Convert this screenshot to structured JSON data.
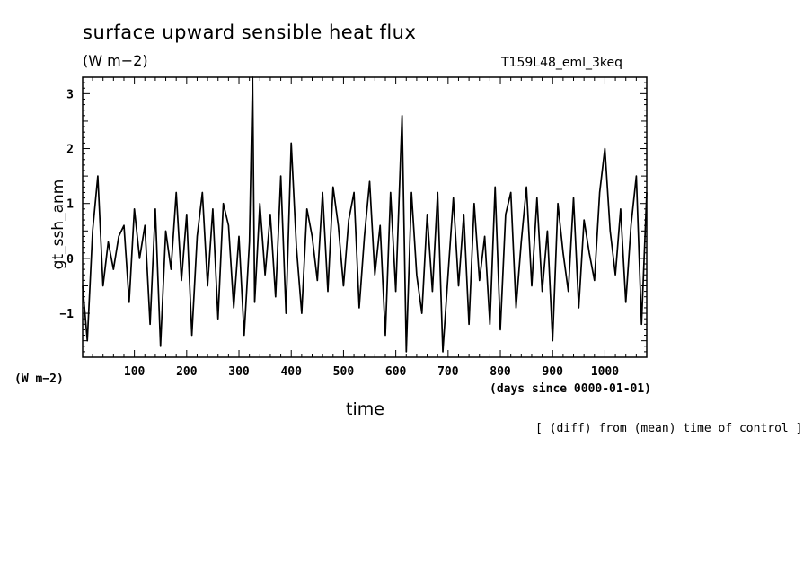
{
  "chart_data": {
    "type": "line",
    "title": "surface upward sensible heat flux",
    "units_label": "(W m−2)",
    "run_label": "T159L48_eml_3keq",
    "xlabel": "time",
    "x_units": "(days since 0000-01-01)",
    "ylabel": "gt_ssh_anm",
    "y_units_label": "(W m−2)",
    "note": "[ (diff) from (mean) time of control ]",
    "xlim": [
      1,
      1080
    ],
    "ylim": [
      -1.8,
      3.3
    ],
    "x_ticks": [
      100,
      200,
      300,
      400,
      500,
      600,
      700,
      800,
      900,
      1000
    ],
    "x_tick_labels": [
      "100",
      "200",
      "300",
      "400",
      "500",
      "600",
      "700",
      "800",
      "900",
      "1000"
    ],
    "y_ticks": [
      -1,
      0,
      1,
      2,
      3
    ],
    "y_tick_labels": [
      "−1",
      "0",
      "1",
      "2",
      "3"
    ],
    "grid": false,
    "line_color": "#000000",
    "series": [
      {
        "x": [
          1,
          10,
          20,
          30,
          40,
          50,
          60,
          70,
          80,
          90,
          100,
          110,
          120,
          130,
          140,
          150,
          160,
          170,
          180,
          190,
          200,
          210,
          220,
          230,
          240,
          250,
          260,
          270,
          280,
          290,
          300,
          310,
          320,
          326,
          330,
          340,
          350,
          360,
          370,
          380,
          390,
          400,
          410,
          420,
          430,
          440,
          450,
          460,
          470,
          480,
          490,
          500,
          510,
          520,
          530,
          540,
          550,
          560,
          570,
          580,
          590,
          600,
          612,
          620,
          630,
          640,
          650,
          660,
          670,
          680,
          690,
          700,
          710,
          720,
          730,
          740,
          750,
          760,
          770,
          780,
          790,
          800,
          810,
          820,
          830,
          840,
          850,
          860,
          870,
          880,
          890,
          900,
          910,
          920,
          930,
          940,
          950,
          960,
          970,
          980,
          990,
          1000,
          1010,
          1020,
          1030,
          1040,
          1050,
          1060,
          1070,
          1080
        ],
        "y": [
          -0.5,
          -1.5,
          0.5,
          1.5,
          -0.5,
          0.3,
          -0.2,
          0.4,
          0.6,
          -0.8,
          0.9,
          0.0,
          0.6,
          -1.2,
          0.9,
          -1.6,
          0.5,
          -0.2,
          1.2,
          -0.4,
          0.8,
          -1.4,
          0.4,
          1.2,
          -0.5,
          0.9,
          -1.1,
          1.0,
          0.6,
          -0.9,
          0.4,
          -1.4,
          0.3,
          3.3,
          -0.8,
          1.0,
          -0.3,
          0.8,
          -0.7,
          1.5,
          -1.0,
          2.1,
          0.2,
          -1.0,
          0.9,
          0.4,
          -0.4,
          1.2,
          -0.6,
          1.3,
          0.6,
          -0.5,
          0.7,
          1.2,
          -0.9,
          0.4,
          1.4,
          -0.3,
          0.6,
          -1.4,
          1.2,
          -0.6,
          2.6,
          -1.7,
          1.2,
          -0.3,
          -1.0,
          0.8,
          -0.6,
          1.2,
          -1.7,
          -0.3,
          1.1,
          -0.5,
          0.8,
          -1.2,
          1.0,
          -0.4,
          0.4,
          -1.2,
          1.3,
          -1.3,
          0.8,
          1.2,
          -0.9,
          0.3,
          1.3,
          -0.5,
          1.1,
          -0.6,
          0.5,
          -1.5,
          1.0,
          0.1,
          -0.6,
          1.1,
          -0.9,
          0.7,
          0.1,
          -0.4,
          1.2,
          2.0,
          0.5,
          -0.3,
          0.9,
          -0.8,
          0.6,
          1.5,
          -1.2,
          1.2
        ]
      }
    ]
  }
}
